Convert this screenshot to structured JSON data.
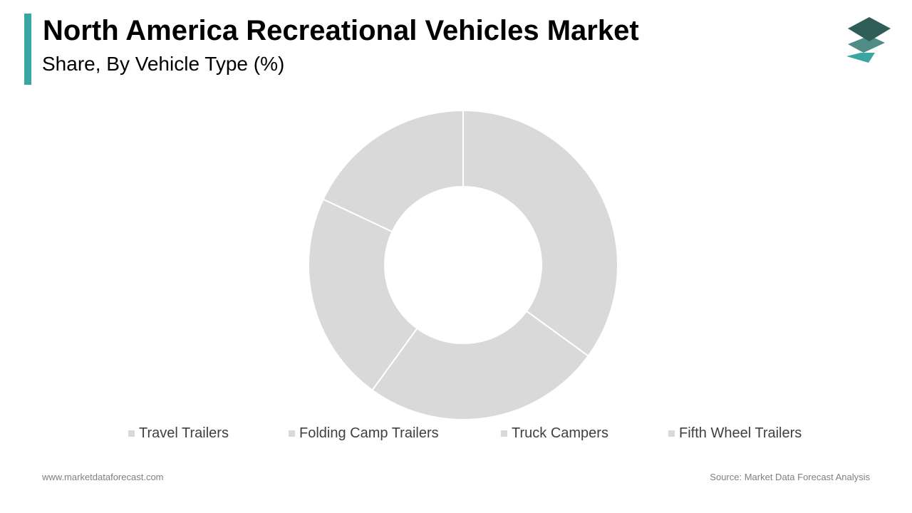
{
  "header": {
    "title": "North America Recreational Vehicles Market",
    "subtitle": "Share, By Vehicle Type (%)"
  },
  "colors": {
    "accent": "#3aa6a1",
    "slice": "#d9d9d9",
    "logo_top": "#2f5d58",
    "logo_mid": "#4f8c86",
    "logo_bottom": "#3aa6a1"
  },
  "chart_data": {
    "type": "pie",
    "style": "donut",
    "categories": [
      "Travel Trailers",
      "Folding Camp Trailers",
      "Truck Campers",
      "Fifth Wheel Trailers"
    ],
    "values": [
      35,
      25,
      22,
      18
    ],
    "unit": "%",
    "legend": "bottom"
  },
  "footer": {
    "website": "www.marketdataforecast.com",
    "source": "Source: Market Data Forecast Analysis"
  }
}
